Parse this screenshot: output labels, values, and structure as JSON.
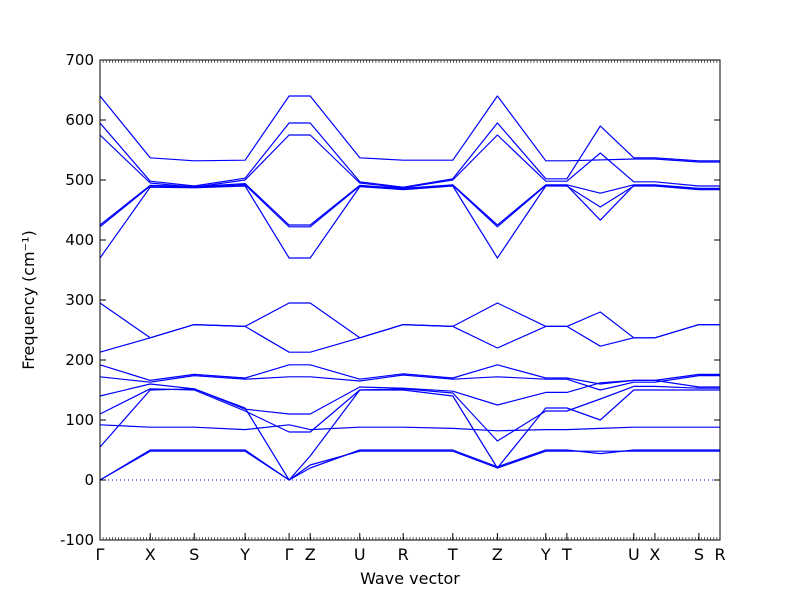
{
  "chart_data": {
    "type": "line",
    "title": "",
    "xlabel": "Wave vector",
    "ylabel": "Frequency (cm⁻¹)",
    "ylim": [
      -100,
      700
    ],
    "yticks": [
      -100,
      0,
      100,
      200,
      300,
      400,
      500,
      600,
      700
    ],
    "xlim": [
      0,
      1
    ],
    "xticks": [
      {
        "label": "Γ",
        "x": 0.0
      },
      {
        "label": "X",
        "x": 0.081
      },
      {
        "label": "S",
        "x": 0.152
      },
      {
        "label": "Y",
        "x": 0.234
      },
      {
        "label": "Γ",
        "x": 0.305
      },
      {
        "label": "Z",
        "x": 0.339
      },
      {
        "label": "U",
        "x": 0.419
      },
      {
        "label": "R",
        "x": 0.489
      },
      {
        "label": "T",
        "x": 0.569
      },
      {
        "label": "Z",
        "x": 0.641
      },
      {
        "label": "Y",
        "x": 0.719
      },
      {
        "label": "T",
        "x": 0.753
      },
      {
        "label": "U",
        "x": 0.861
      },
      {
        "label": "X",
        "x": 0.895
      },
      {
        "label": "S",
        "x": 0.966
      },
      {
        "label": "R",
        "x": 1.0
      }
    ],
    "zero_line": true,
    "color": "#0000ff",
    "series": [
      {
        "x": [
          0,
          0.081,
          0.152,
          0.234,
          0.305,
          0.339,
          0.419,
          0.489,
          0.569,
          0.641,
          0.719,
          0.753,
          0.861,
          0.895,
          0.966,
          1.0
        ],
        "y": [
          640,
          537,
          532,
          533,
          640,
          640,
          537,
          533,
          533,
          640,
          532,
          532,
          535,
          535,
          530,
          530
        ]
      },
      {
        "x": [
          0,
          0.081,
          0.152,
          0.234,
          0.305,
          0.339,
          0.419,
          0.489,
          0.569,
          0.641,
          0.719,
          0.753,
          0.807,
          0.861,
          0.895,
          0.966,
          1.0
        ],
        "y": [
          595,
          498,
          490,
          503,
          595,
          595,
          497,
          488,
          502,
          595,
          502,
          502,
          590,
          537,
          537,
          532,
          532
        ]
      },
      {
        "x": [
          0,
          0.081,
          0.152,
          0.234,
          0.305,
          0.339,
          0.419,
          0.489,
          0.569,
          0.641,
          0.719,
          0.753,
          0.807,
          0.861,
          0.895,
          0.966,
          1.0
        ],
        "y": [
          575,
          495,
          488,
          500,
          575,
          575,
          495,
          487,
          500,
          575,
          498,
          498,
          545,
          497,
          497,
          490,
          490
        ]
      },
      {
        "x": [
          0,
          0.081,
          0.152,
          0.234,
          0.305,
          0.339,
          0.419,
          0.489,
          0.569,
          0.641,
          0.719,
          0.753,
          0.807,
          0.861,
          0.895,
          0.966,
          1.0
        ],
        "y": [
          425,
          491,
          489,
          494,
          425,
          425,
          491,
          486,
          492,
          425,
          492,
          492,
          478,
          492,
          492,
          486,
          486
        ]
      },
      {
        "x": [
          0,
          0.081,
          0.152,
          0.234,
          0.305,
          0.339,
          0.419,
          0.489,
          0.569,
          0.641,
          0.719,
          0.753,
          0.807,
          0.861,
          0.895,
          0.966,
          1.0
        ],
        "y": [
          422,
          490,
          488,
          492,
          422,
          422,
          490,
          485,
          491,
          422,
          491,
          491,
          433,
          491,
          491,
          485,
          485
        ]
      },
      {
        "x": [
          0,
          0.081,
          0.152,
          0.234,
          0.305,
          0.339,
          0.419,
          0.489,
          0.569,
          0.641,
          0.719,
          0.753,
          0.807,
          0.861,
          0.895,
          0.966,
          1.0
        ],
        "y": [
          370,
          488,
          487,
          490,
          370,
          370,
          489,
          484,
          490,
          370,
          490,
          490,
          455,
          490,
          490,
          484,
          484
        ]
      },
      {
        "x": [
          0,
          0.081,
          0.152,
          0.234,
          0.305,
          0.339,
          0.419,
          0.489,
          0.569,
          0.641,
          0.719,
          0.753,
          0.807,
          0.861,
          0.895,
          0.966,
          1.0
        ],
        "y": [
          295,
          237,
          259,
          256,
          295,
          295,
          237,
          259,
          256,
          295,
          256,
          256,
          280,
          237,
          237,
          259,
          259
        ]
      },
      {
        "x": [
          0,
          0.081,
          0.152,
          0.234,
          0.305,
          0.339,
          0.419,
          0.489,
          0.569,
          0.641,
          0.719,
          0.753,
          0.807,
          0.861,
          0.895,
          0.966,
          1.0
        ],
        "y": [
          213,
          237,
          259,
          256,
          213,
          213,
          237,
          259,
          256,
          220,
          256,
          256,
          223,
          237,
          237,
          259,
          259
        ]
      },
      {
        "x": [
          0,
          0.081,
          0.152,
          0.234,
          0.305,
          0.339,
          0.419,
          0.489,
          0.569,
          0.641,
          0.719,
          0.753,
          0.807,
          0.861,
          0.895,
          0.966,
          1.0
        ],
        "y": [
          192,
          166,
          176,
          170,
          192,
          192,
          168,
          177,
          170,
          192,
          170,
          170,
          160,
          166,
          166,
          176,
          176
        ]
      },
      {
        "x": [
          0,
          0.081,
          0.152,
          0.234,
          0.305,
          0.339,
          0.419,
          0.489,
          0.569,
          0.641,
          0.719,
          0.753,
          0.807,
          0.861,
          0.895,
          0.966,
          1.0
        ],
        "y": [
          172,
          163,
          174,
          168,
          172,
          172,
          165,
          175,
          168,
          172,
          168,
          168,
          150,
          163,
          163,
          174,
          174
        ]
      },
      {
        "x": [
          0,
          0.081,
          0.152,
          0.234,
          0.305,
          0.339,
          0.419,
          0.489,
          0.569,
          0.641,
          0.719,
          0.753,
          0.807,
          0.861,
          0.895,
          0.966,
          1.0
        ],
        "y": [
          140,
          160,
          152,
          118,
          110,
          110,
          155,
          153,
          148,
          125,
          146,
          146,
          162,
          166,
          166,
          155,
          155
        ]
      },
      {
        "x": [
          0,
          0.081,
          0.152,
          0.234,
          0.305,
          0.339,
          0.419,
          0.489,
          0.569,
          0.641,
          0.719,
          0.753,
          0.807,
          0.861,
          0.895,
          0.966,
          1.0
        ],
        "y": [
          110,
          152,
          150,
          115,
          80,
          80,
          150,
          152,
          145,
          65,
          115,
          115,
          135,
          156,
          156,
          153,
          153
        ]
      },
      {
        "x": [
          0,
          0.081,
          0.152,
          0.234,
          0.305,
          0.339,
          0.419,
          0.489,
          0.569,
          0.641,
          0.719,
          0.753,
          0.807,
          0.861,
          0.895,
          0.966,
          1.0
        ],
        "y": [
          92,
          88,
          88,
          84,
          92,
          84,
          88,
          88,
          86,
          82,
          84,
          84,
          86,
          88,
          88,
          88,
          88
        ]
      },
      {
        "x": [
          0,
          0.081,
          0.152,
          0.234,
          0.305,
          0.339,
          0.419,
          0.489,
          0.569,
          0.641,
          0.719,
          0.753,
          0.807,
          0.861,
          0.895,
          0.966,
          1.0
        ],
        "y": [
          55,
          150,
          152,
          120,
          0,
          40,
          150,
          150,
          140,
          20,
          120,
          120,
          100,
          150,
          150,
          150,
          150
        ]
      },
      {
        "x": [
          0,
          0.081,
          0.152,
          0.234,
          0.305,
          0.339,
          0.419,
          0.489,
          0.569,
          0.641,
          0.719,
          0.753,
          0.807,
          0.861,
          0.895,
          0.966,
          1.0
        ],
        "y": [
          0,
          48,
          48,
          48,
          0,
          25,
          48,
          48,
          48,
          20,
          48,
          48,
          48,
          48,
          48,
          48,
          48
        ]
      },
      {
        "x": [
          0,
          0.081,
          0.152,
          0.234,
          0.305,
          0.339,
          0.419,
          0.489,
          0.569,
          0.641,
          0.719,
          0.753,
          0.807,
          0.861,
          0.895,
          0.966,
          1.0
        ],
        "y": [
          0,
          50,
          50,
          50,
          0,
          20,
          50,
          50,
          50,
          22,
          50,
          50,
          44,
          50,
          50,
          50,
          50
        ]
      }
    ]
  }
}
